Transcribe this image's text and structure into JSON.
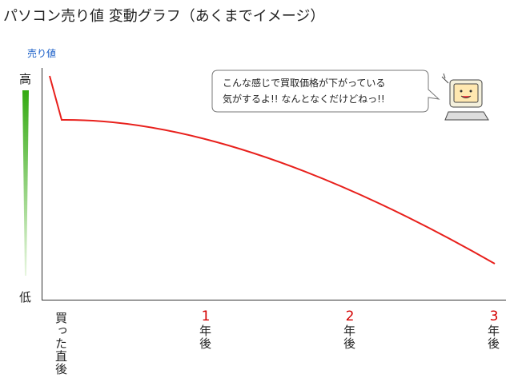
{
  "header": {
    "title": "パソコン売り値 変動グラフ（あくまでイメージ）"
  },
  "y_axis": {
    "label": "売り値",
    "high": "高",
    "low": "低"
  },
  "x_axis": {
    "labels": [
      {
        "text": "買った直後"
      },
      {
        "number": "1",
        "text": "年後"
      },
      {
        "number": "2",
        "text": "年後"
      },
      {
        "number": "3",
        "text": "年後"
      }
    ]
  },
  "speech_bubble": {
    "lines": [
      "こんな感じで買取価格が下がっている",
      "気がするよ!! なんとなくだけどねっ!!"
    ]
  }
}
